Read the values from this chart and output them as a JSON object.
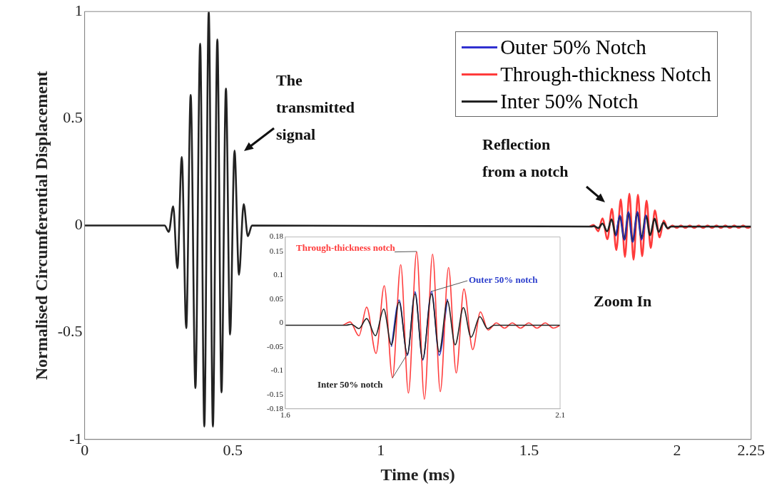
{
  "chart_data": [
    {
      "type": "line",
      "xlabel": "Time (ms)",
      "ylabel": "Normalised Circumferential Displacement",
      "xlim": [
        0,
        2.25
      ],
      "xticks": [
        0,
        0.5,
        1,
        1.5,
        2,
        2.25
      ],
      "ylim": [
        -1,
        1
      ],
      "yticks": [
        -1,
        -0.5,
        0,
        0.5,
        1
      ],
      "grid": false,
      "legend": "top right",
      "marker": "none",
      "annotations": [
        "The transmitted signal",
        "Reflection from a notch",
        "Zoom In"
      ],
      "series": [
        {
          "name": "Outer 50% Notch",
          "color": "#3030d0",
          "x": [
            1.793,
            1.807,
            1.822,
            1.836,
            1.85,
            1.866,
            1.88,
            1.895
          ],
          "values": [
            -0.05,
            0.048,
            -0.068,
            0.065,
            -0.078,
            0.066,
            -0.068,
            0.05
          ]
        },
        {
          "name": "Through-thickness Notch",
          "color": "#ff3b3b",
          "x": [
            1.705,
            1.718,
            1.734,
            1.748,
            1.765,
            1.78,
            1.795,
            1.81,
            1.824,
            1.839,
            1.853,
            1.868,
            1.882,
            1.897,
            1.911,
            1.925,
            1.941,
            1.955,
            1.969,
            1.984,
            1.999,
            2.013,
            2.028,
            2.043,
            2.058,
            2.073,
            2.088,
            2.103,
            2.118,
            2.133,
            2.148,
            2.163,
            2.178,
            2.193,
            2.208,
            2.223,
            2.238,
            2.25
          ],
          "values": [
            -0.005,
            0.002,
            -0.027,
            0.033,
            -0.064,
            0.078,
            -0.115,
            0.122,
            -0.147,
            0.149,
            -0.16,
            0.144,
            -0.144,
            0.116,
            -0.105,
            0.071,
            -0.056,
            0.023,
            -0.015,
            0,
            -0.011,
            0,
            -0.011,
            0,
            -0.011,
            0,
            -0.011,
            0,
            -0.011,
            0,
            -0.011,
            0,
            -0.011,
            0,
            -0.011,
            0,
            -0.011,
            -0.005
          ]
        },
        {
          "name": "Inter 50% Notch",
          "color": "#222222",
          "x": [
            0,
            0.27,
            0.284,
            0.299,
            0.313,
            0.328,
            0.343,
            0.358,
            0.374,
            0.39,
            0.404,
            0.419,
            0.433,
            0.448,
            0.462,
            0.477,
            0.491,
            0.506,
            0.521,
            0.537,
            0.551,
            0.565,
            1.71,
            1.72,
            1.734,
            1.748,
            1.764,
            1.779,
            1.793,
            1.807,
            1.822,
            1.836,
            1.85,
            1.866,
            1.88,
            1.895,
            1.909,
            1.924,
            1.938,
            1.954,
            1.968,
            1.98,
            2.25
          ],
          "values": [
            0,
            0,
            -0.03,
            0.09,
            -0.2,
            0.32,
            -0.48,
            0.61,
            -0.76,
            0.85,
            -0.94,
            1,
            -0.94,
            0.87,
            -0.78,
            0.64,
            -0.51,
            0.35,
            -0.23,
            0.1,
            -0.05,
            0,
            -0.005,
            -0.003,
            -0.012,
            0.009,
            -0.027,
            0.029,
            -0.046,
            0.044,
            -0.066,
            0.061,
            -0.076,
            0.061,
            -0.061,
            0.046,
            -0.046,
            0.032,
            -0.03,
            0.013,
            -0.012,
            -0.005,
            -0.005
          ]
        }
      ]
    },
    {
      "type": "line",
      "xlim": [
        1.6,
        2.1
      ],
      "xticks": [
        1.6,
        2.1
      ],
      "ylim": [
        -0.18,
        0.18
      ],
      "yticks": [
        -0.18,
        -0.15,
        -0.1,
        -0.05,
        0,
        0.05,
        0.1,
        0.15,
        0.18
      ],
      "grid": false,
      "marker": "none",
      "annotations": [
        {
          "text": "Outer 50% notch",
          "x": 1.866,
          "y": 0.066
        },
        {
          "text": "Through-thickness notch",
          "x": 1.839,
          "y": 0.149
        },
        {
          "text": "Inter 50% notch",
          "x": 1.822,
          "y": -0.066
        }
      ],
      "series": [
        {
          "color": "#2a3ccc",
          "x": [
            1.793,
            1.807,
            1.822,
            1.836,
            1.85,
            1.866,
            1.88,
            1.895
          ],
          "values": [
            -0.05,
            0.048,
            -0.068,
            0.065,
            -0.078,
            0.066,
            -0.068,
            0.05
          ]
        },
        {
          "color": "#ff3b3b",
          "x": [
            1.705,
            1.718,
            1.734,
            1.748,
            1.765,
            1.78,
            1.795,
            1.81,
            1.824,
            1.839,
            1.853,
            1.868,
            1.882,
            1.897,
            1.911,
            1.925,
            1.941,
            1.955,
            1.969,
            1.984,
            1.999,
            2.013,
            2.028,
            2.043,
            2.058,
            2.073,
            2.088,
            2.1
          ],
          "values": [
            -0.005,
            0.002,
            -0.027,
            0.033,
            -0.064,
            0.078,
            -0.115,
            0.122,
            -0.147,
            0.149,
            -0.16,
            0.144,
            -0.144,
            0.116,
            -0.105,
            0.071,
            -0.056,
            0.023,
            -0.015,
            0,
            -0.011,
            0,
            -0.011,
            0,
            -0.011,
            0,
            -0.011,
            -0.005
          ]
        },
        {
          "color": "#222222",
          "x": [
            1.6,
            1.71,
            1.72,
            1.734,
            1.748,
            1.764,
            1.779,
            1.793,
            1.807,
            1.822,
            1.836,
            1.85,
            1.866,
            1.88,
            1.895,
            1.909,
            1.924,
            1.938,
            1.954,
            1.968,
            1.98,
            2.1
          ],
          "values": [
            -0.005,
            -0.005,
            -0.003,
            -0.012,
            0.009,
            -0.027,
            0.029,
            -0.046,
            0.044,
            -0.066,
            0.061,
            -0.076,
            0.061,
            -0.061,
            0.046,
            -0.046,
            0.032,
            -0.03,
            0.013,
            -0.012,
            -0.005,
            -0.005
          ]
        }
      ]
    }
  ]
}
